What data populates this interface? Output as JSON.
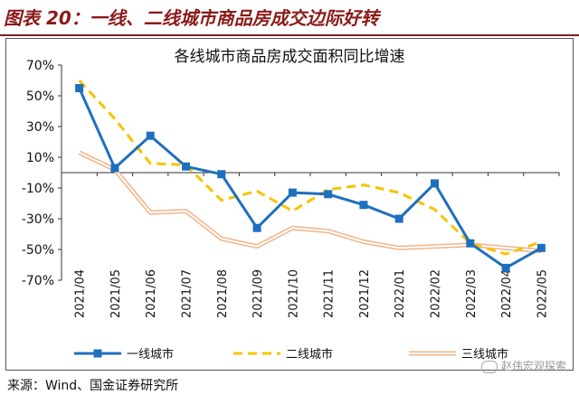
{
  "figure": {
    "title": "图表 20：一线、二线城市商品房成交边际好转",
    "source": "来源：Wind、国金证券研究所",
    "watermark": "赵伟宏观探索"
  },
  "chart_data": {
    "type": "line",
    "title": "各线城市商品房成交面积同比增速",
    "xlabel": "",
    "ylabel": "",
    "categories": [
      "2021/04",
      "2021/05",
      "2021/06",
      "2021/07",
      "2021/08",
      "2021/09",
      "2021/10",
      "2021/11",
      "2021/12",
      "2022/01",
      "2022/02",
      "2022/03",
      "2022/04",
      "2022/05"
    ],
    "ylim": [
      -70,
      70
    ],
    "yticks": [
      70,
      50,
      30,
      10,
      -10,
      -30,
      -50,
      -70
    ],
    "ytick_labels": [
      "70%",
      "50%",
      "30%",
      "10%",
      "-10%",
      "-30%",
      "-50%",
      "-70%"
    ],
    "grid": false,
    "legend_position": "bottom",
    "series": [
      {
        "name": "一线城市",
        "color": "#1f6fbf",
        "style": "solid-square-markers",
        "values": [
          55,
          3,
          24,
          4,
          -1,
          -36,
          -13,
          -14,
          -21,
          -30,
          -7,
          -46,
          -62,
          -49
        ]
      },
      {
        "name": "二线城市",
        "color": "#f7c300",
        "style": "dashed",
        "values": [
          60,
          35,
          6,
          5,
          -18,
          -12,
          -25,
          -11,
          -8,
          -13,
          -24,
          -46,
          -53,
          -45
        ]
      },
      {
        "name": "三线城市",
        "color": "#f2b48a",
        "style": "double-line",
        "values": [
          13,
          2,
          -26,
          -25,
          -43,
          -48,
          -36,
          -38,
          -45,
          -49,
          -48,
          -47,
          -49,
          -51
        ]
      }
    ]
  }
}
